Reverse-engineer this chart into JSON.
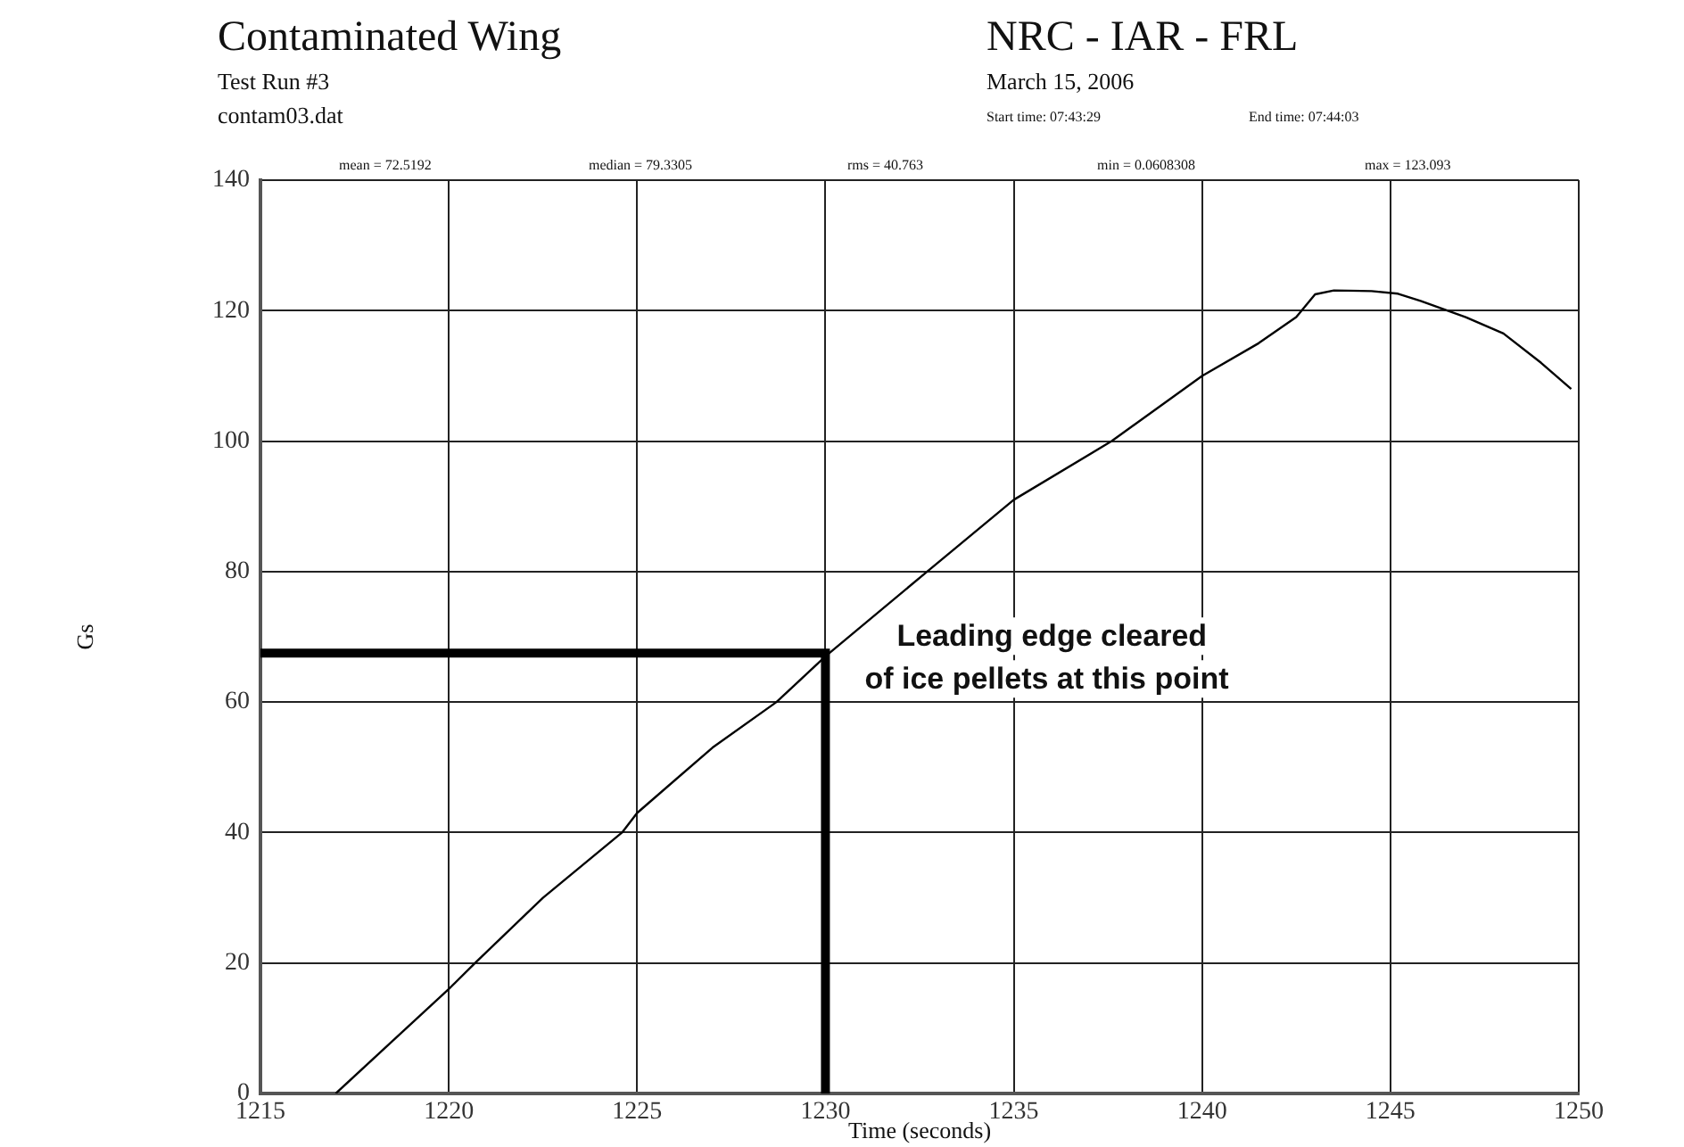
{
  "chart_data": {
    "type": "line",
    "title": "Contaminated Wing",
    "subtitle": "Test Run #3",
    "xlabel": "Time (seconds)",
    "ylabel": "Gs",
    "xlim": [
      1215,
      1250
    ],
    "xticks": [
      1215,
      1220,
      1225,
      1230,
      1235,
      1240,
      1245,
      1250
    ],
    "ylim": [
      0,
      140
    ],
    "yticks": [
      0,
      20,
      40,
      60,
      80,
      100,
      120,
      140
    ],
    "grid": true,
    "legend": false,
    "marker": "none",
    "line_style": "solid",
    "series": [
      {
        "color": "#000000",
        "x": [
          1217.0,
          1218.5,
          1220,
          1220.7,
          1222.5,
          1224.6,
          1225,
          1227,
          1228.7,
          1230,
          1232.7,
          1235,
          1237.6,
          1240,
          1241.5,
          1242.5,
          1243.0,
          1243.5,
          1244.5,
          1245.2,
          1245.8,
          1247,
          1248,
          1249,
          1249.8
        ],
        "values": [
          0,
          8,
          16,
          20,
          30,
          40,
          43,
          53,
          60,
          67,
          80,
          91,
          100,
          110,
          115,
          119,
          122.5,
          123.1,
          123,
          122.6,
          121.5,
          119,
          116.5,
          112,
          108
        ]
      },
      {
        "color": "#000000",
        "x": [
          1215,
          1230,
          1230
        ],
        "values": [
          67.5,
          67.5,
          0
        ]
      }
    ],
    "annotations": [
      "contam03.dat",
      "NRC - IAR - FRL",
      "March 15, 2006",
      "Start time: 07:43:29",
      "End time: 07:44:03",
      "mean = 72.5192",
      "median = 79.3305",
      "rms = 40.763",
      "min = 0.0608308",
      "max = 123.093",
      {
        "text": "Leading edge cleared of ice pellets at this point",
        "x": 1230,
        "y": 67.5
      }
    ]
  }
}
